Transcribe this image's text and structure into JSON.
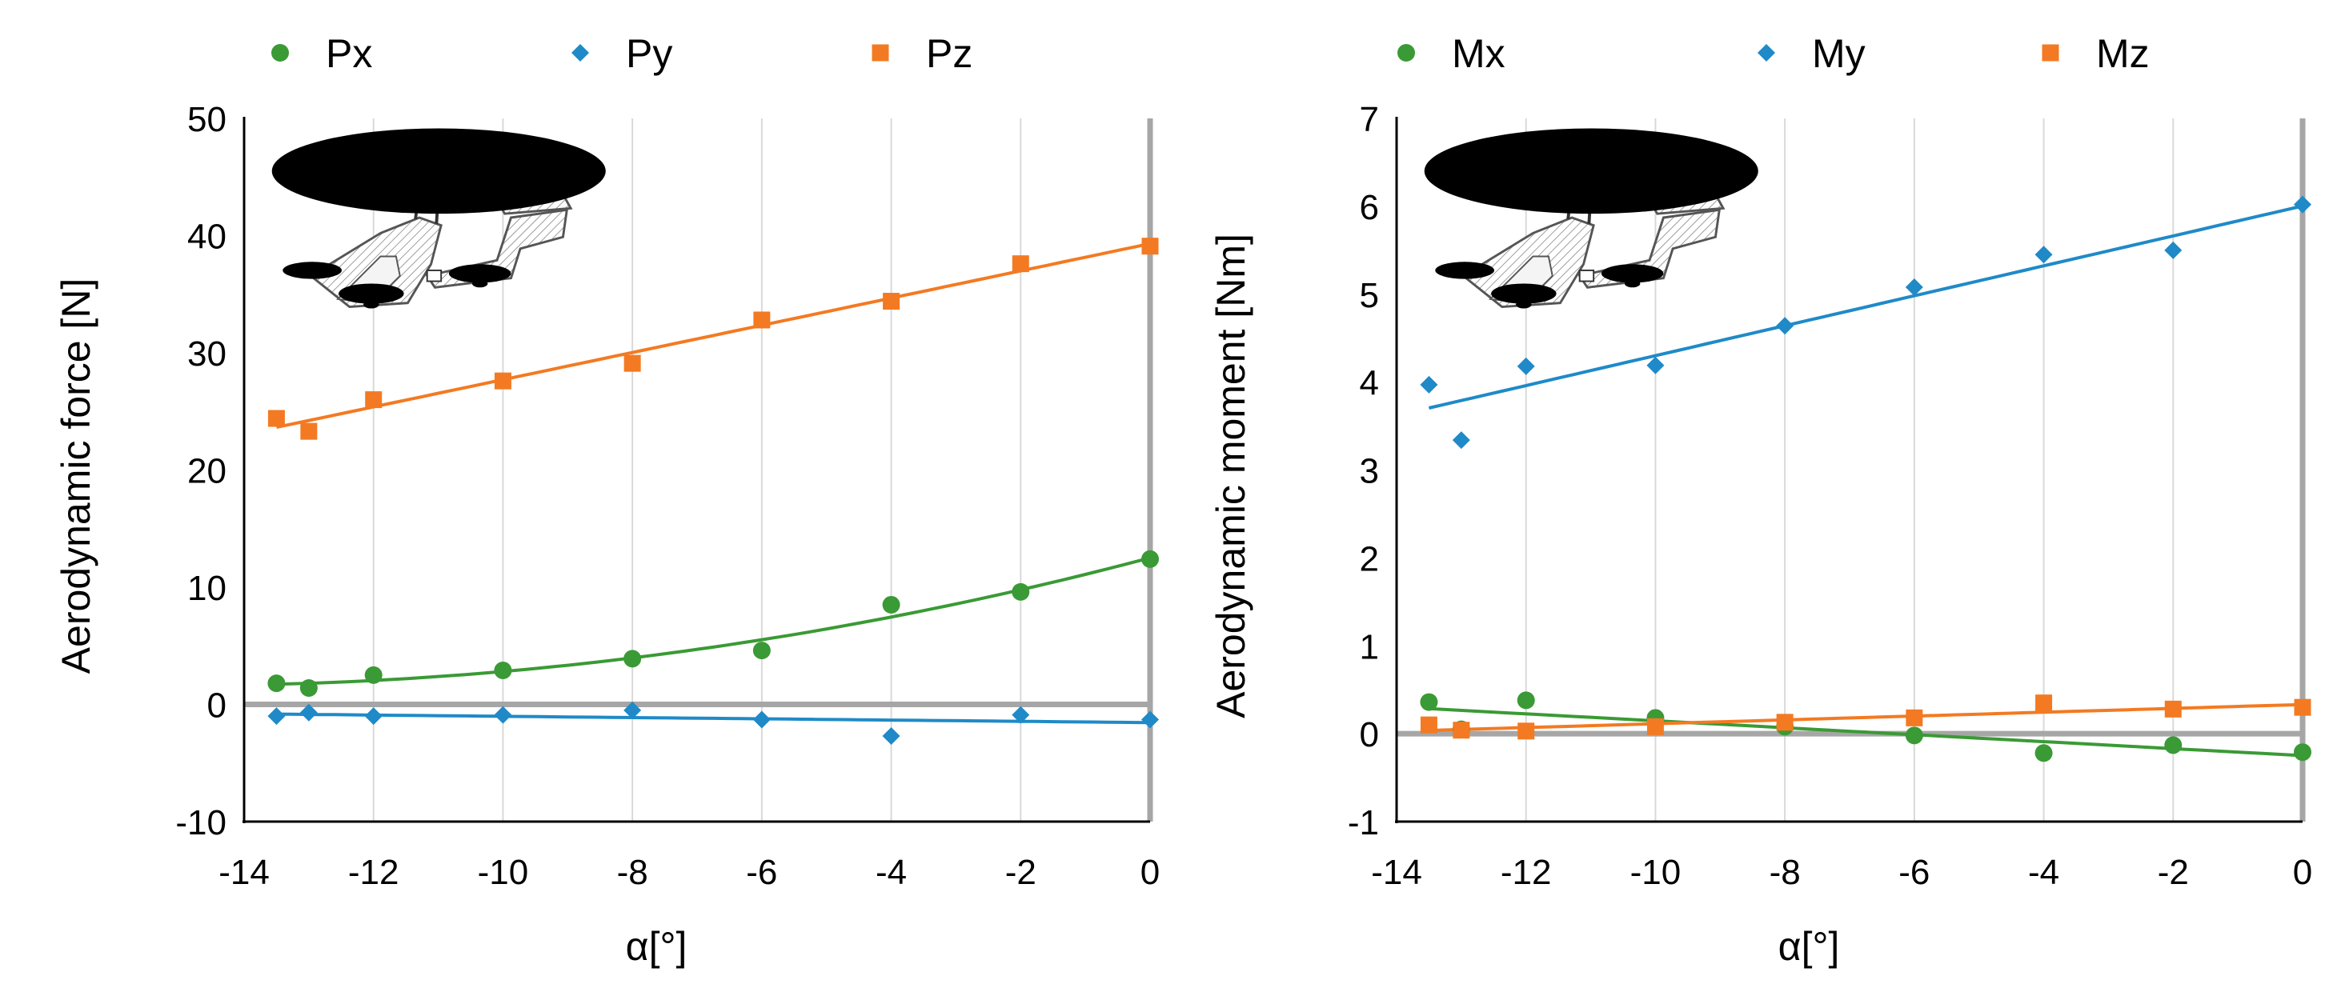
{
  "colors": {
    "Px": "#3a9a35",
    "Py": "#1f8ac7",
    "Pz": "#f37a22",
    "Mx": "#3a9a35",
    "My": "#1f8ac7",
    "Mz": "#f37a22",
    "grid": "#d9d9d9",
    "zero": "#a6a6a6"
  },
  "chart_data": [
    {
      "type": "scatter",
      "xlabel": "α[°]",
      "ylabel": "Aerodynamic force [N]",
      "xlim": [
        -14,
        0
      ],
      "ylim": [
        -10,
        50
      ],
      "xticks": [
        -14,
        -12,
        -10,
        -8,
        -6,
        -4,
        -2,
        0
      ],
      "yticks": [
        -10,
        0,
        10,
        20,
        30,
        40,
        50
      ],
      "xtick_labels": [
        "-14",
        "-12",
        "-10",
        "-8",
        "-6",
        "-4",
        "-2",
        "0"
      ],
      "ytick_labels": [
        "-10",
        "0",
        "10",
        "20",
        "30",
        "40",
        "50"
      ],
      "grid": "vertical",
      "legend_position": "top",
      "illustration": "helicopter-model-icon",
      "series": [
        {
          "name": "Px",
          "marker": "circle",
          "x": [
            -13.5,
            -13,
            -12,
            -10,
            -8,
            -6,
            -4,
            -2,
            0
          ],
          "y": [
            1.8,
            1.4,
            2.5,
            2.9,
            3.9,
            4.6,
            8.5,
            9.6,
            12.4
          ],
          "trend": "poly2"
        },
        {
          "name": "Py",
          "marker": "diamond",
          "x": [
            -13.5,
            -13,
            -12,
            -10,
            -8,
            -6,
            -4,
            -2,
            0
          ],
          "y": [
            -1.0,
            -0.7,
            -1.0,
            -0.9,
            -0.5,
            -1.3,
            -2.7,
            -0.9,
            -1.3
          ],
          "trend": "linear"
        },
        {
          "name": "Pz",
          "marker": "square",
          "x": [
            -13.5,
            -13,
            -12,
            -10,
            -8,
            -6,
            -4,
            -2,
            0
          ],
          "y": [
            24.4,
            23.3,
            26.0,
            27.6,
            29.1,
            32.8,
            34.4,
            37.6,
            39.1
          ],
          "trend": "linear"
        }
      ]
    },
    {
      "type": "scatter",
      "xlabel": "α[°]",
      "ylabel": "Aerodynamic moment [Nm]",
      "xlim": [
        -14,
        0
      ],
      "ylim": [
        -1,
        7
      ],
      "xticks": [
        -14,
        -12,
        -10,
        -8,
        -6,
        -4,
        -2,
        0
      ],
      "yticks": [
        -1,
        0,
        1,
        2,
        3,
        4,
        5,
        6,
        7
      ],
      "xtick_labels": [
        "-14",
        "-12",
        "-10",
        "-8",
        "-6",
        "-4",
        "-2",
        "0"
      ],
      "ytick_labels": [
        "-1",
        "0",
        "1",
        "2",
        "3",
        "4",
        "5",
        "6",
        "7"
      ],
      "grid": "vertical",
      "legend_position": "top",
      "illustration": "helicopter-model-icon",
      "series": [
        {
          "name": "Mx",
          "marker": "circle",
          "x": [
            -13.5,
            -13,
            -12,
            -10,
            -8,
            -6,
            -4,
            -2,
            0
          ],
          "y": [
            0.36,
            0.05,
            0.38,
            0.18,
            0.08,
            -0.02,
            -0.22,
            -0.13,
            -0.21
          ],
          "trend": "linear"
        },
        {
          "name": "My",
          "marker": "diamond",
          "x": [
            -13.5,
            -13,
            -12,
            -10,
            -8,
            -6,
            -4,
            -2,
            0
          ],
          "y": [
            3.97,
            3.34,
            4.18,
            4.19,
            4.64,
            5.08,
            5.45,
            5.5,
            6.02
          ],
          "trend": "linear"
        },
        {
          "name": "Mz",
          "marker": "square",
          "x": [
            -13.5,
            -13,
            -12,
            -10,
            -8,
            -6,
            -4,
            -2,
            0
          ],
          "y": [
            0.1,
            0.04,
            0.03,
            0.08,
            0.13,
            0.18,
            0.35,
            0.28,
            0.3
          ],
          "trend": "linear"
        }
      ]
    }
  ]
}
